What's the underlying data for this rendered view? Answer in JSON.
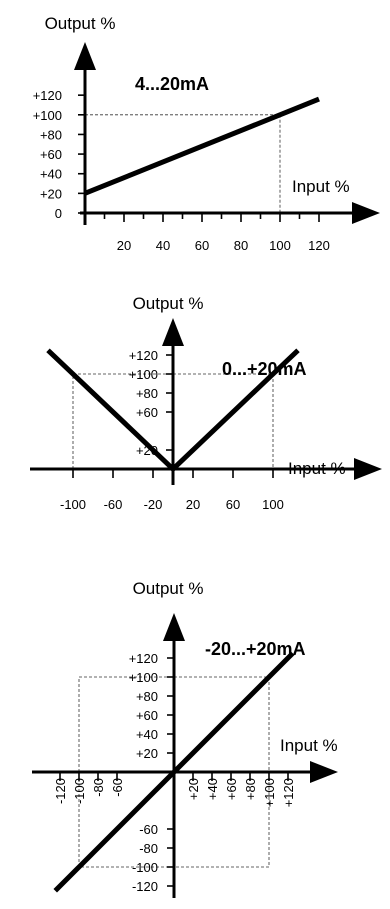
{
  "chart_data": [
    {
      "type": "line",
      "title": "4...20mA",
      "xlabel": "Input %",
      "ylabel": "Output %",
      "x_ticks": [
        "20",
        "40",
        "60",
        "80",
        "100",
        "120"
      ],
      "y_ticks": [
        "0",
        "+20",
        "+40",
        "+60",
        "+80",
        "+100",
        "+120"
      ],
      "xlim": [
        0,
        130
      ],
      "ylim": [
        0,
        130
      ],
      "series": [
        {
          "x": [
            0,
            120
          ],
          "y": [
            20,
            116
          ]
        }
      ],
      "guide": {
        "x": 100,
        "y": 100
      }
    },
    {
      "type": "line",
      "title": "0...+20mA",
      "xlabel": "Input %",
      "ylabel": "Output %",
      "x_ticks": [
        "-100",
        "-60",
        "-20",
        "20",
        "60",
        "100"
      ],
      "y_ticks": [
        "+20",
        "+60",
        "+80",
        "+100",
        "+120"
      ],
      "xlim": [
        -130,
        130
      ],
      "ylim": [
        0,
        130
      ],
      "series": [
        {
          "x": [
            -125,
            0,
            125
          ],
          "y": [
            125,
            0,
            125
          ]
        }
      ],
      "guide": {
        "x": 100,
        "y": 100
      }
    },
    {
      "type": "line",
      "title": "-20...+20mA",
      "xlabel": "Input %",
      "ylabel": "Output %",
      "x_ticks": [
        "-120",
        "-100",
        "-80",
        "-60",
        "+20",
        "+40",
        "+60",
        "+80",
        "+100",
        "+120"
      ],
      "y_ticks": [
        "-120",
        "-100",
        "-80",
        "-60",
        "+20",
        "+40",
        "+60",
        "+80",
        "+100",
        "+120"
      ],
      "xlim": [
        -130,
        130
      ],
      "ylim": [
        -130,
        130
      ],
      "series": [
        {
          "x": [
            -125,
            125
          ],
          "y": [
            -125,
            125
          ]
        }
      ],
      "guide": {
        "x": 100,
        "y": 100
      }
    }
  ]
}
